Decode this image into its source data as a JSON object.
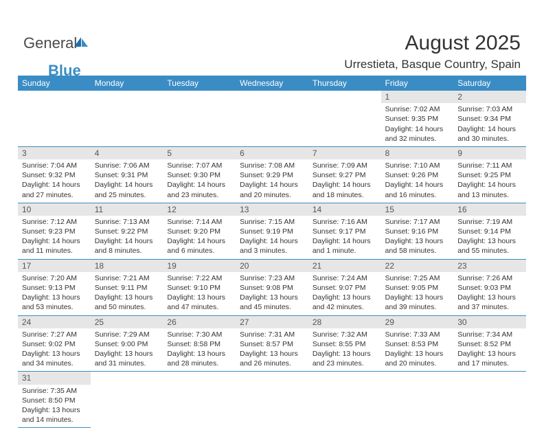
{
  "brand": {
    "general": "General",
    "blue": "Blue"
  },
  "title": "August 2025",
  "location": "Urrestieta, Basque Country, Spain",
  "colors": {
    "header_bg": "#3a8cc4",
    "header_text": "#ffffff",
    "brand_gray": "#4a4a4a",
    "brand_blue": "#3a8cc4",
    "daynum_bg": "#e6e6e6",
    "row_border": "#3a8cc4",
    "text": "#333333",
    "page_bg": "#ffffff"
  },
  "days": [
    "Sunday",
    "Monday",
    "Tuesday",
    "Wednesday",
    "Thursday",
    "Friday",
    "Saturday"
  ],
  "weeks": [
    [
      null,
      null,
      null,
      null,
      null,
      {
        "n": "1",
        "sr": "Sunrise: 7:02 AM",
        "ss": "Sunset: 9:35 PM",
        "d1": "Daylight: 14 hours",
        "d2": "and 32 minutes."
      },
      {
        "n": "2",
        "sr": "Sunrise: 7:03 AM",
        "ss": "Sunset: 9:34 PM",
        "d1": "Daylight: 14 hours",
        "d2": "and 30 minutes."
      }
    ],
    [
      {
        "n": "3",
        "sr": "Sunrise: 7:04 AM",
        "ss": "Sunset: 9:32 PM",
        "d1": "Daylight: 14 hours",
        "d2": "and 27 minutes."
      },
      {
        "n": "4",
        "sr": "Sunrise: 7:06 AM",
        "ss": "Sunset: 9:31 PM",
        "d1": "Daylight: 14 hours",
        "d2": "and 25 minutes."
      },
      {
        "n": "5",
        "sr": "Sunrise: 7:07 AM",
        "ss": "Sunset: 9:30 PM",
        "d1": "Daylight: 14 hours",
        "d2": "and 23 minutes."
      },
      {
        "n": "6",
        "sr": "Sunrise: 7:08 AM",
        "ss": "Sunset: 9:29 PM",
        "d1": "Daylight: 14 hours",
        "d2": "and 20 minutes."
      },
      {
        "n": "7",
        "sr": "Sunrise: 7:09 AM",
        "ss": "Sunset: 9:27 PM",
        "d1": "Daylight: 14 hours",
        "d2": "and 18 minutes."
      },
      {
        "n": "8",
        "sr": "Sunrise: 7:10 AM",
        "ss": "Sunset: 9:26 PM",
        "d1": "Daylight: 14 hours",
        "d2": "and 16 minutes."
      },
      {
        "n": "9",
        "sr": "Sunrise: 7:11 AM",
        "ss": "Sunset: 9:25 PM",
        "d1": "Daylight: 14 hours",
        "d2": "and 13 minutes."
      }
    ],
    [
      {
        "n": "10",
        "sr": "Sunrise: 7:12 AM",
        "ss": "Sunset: 9:23 PM",
        "d1": "Daylight: 14 hours",
        "d2": "and 11 minutes."
      },
      {
        "n": "11",
        "sr": "Sunrise: 7:13 AM",
        "ss": "Sunset: 9:22 PM",
        "d1": "Daylight: 14 hours",
        "d2": "and 8 minutes."
      },
      {
        "n": "12",
        "sr": "Sunrise: 7:14 AM",
        "ss": "Sunset: 9:20 PM",
        "d1": "Daylight: 14 hours",
        "d2": "and 6 minutes."
      },
      {
        "n": "13",
        "sr": "Sunrise: 7:15 AM",
        "ss": "Sunset: 9:19 PM",
        "d1": "Daylight: 14 hours",
        "d2": "and 3 minutes."
      },
      {
        "n": "14",
        "sr": "Sunrise: 7:16 AM",
        "ss": "Sunset: 9:17 PM",
        "d1": "Daylight: 14 hours",
        "d2": "and 1 minute."
      },
      {
        "n": "15",
        "sr": "Sunrise: 7:17 AM",
        "ss": "Sunset: 9:16 PM",
        "d1": "Daylight: 13 hours",
        "d2": "and 58 minutes."
      },
      {
        "n": "16",
        "sr": "Sunrise: 7:19 AM",
        "ss": "Sunset: 9:14 PM",
        "d1": "Daylight: 13 hours",
        "d2": "and 55 minutes."
      }
    ],
    [
      {
        "n": "17",
        "sr": "Sunrise: 7:20 AM",
        "ss": "Sunset: 9:13 PM",
        "d1": "Daylight: 13 hours",
        "d2": "and 53 minutes."
      },
      {
        "n": "18",
        "sr": "Sunrise: 7:21 AM",
        "ss": "Sunset: 9:11 PM",
        "d1": "Daylight: 13 hours",
        "d2": "and 50 minutes."
      },
      {
        "n": "19",
        "sr": "Sunrise: 7:22 AM",
        "ss": "Sunset: 9:10 PM",
        "d1": "Daylight: 13 hours",
        "d2": "and 47 minutes."
      },
      {
        "n": "20",
        "sr": "Sunrise: 7:23 AM",
        "ss": "Sunset: 9:08 PM",
        "d1": "Daylight: 13 hours",
        "d2": "and 45 minutes."
      },
      {
        "n": "21",
        "sr": "Sunrise: 7:24 AM",
        "ss": "Sunset: 9:07 PM",
        "d1": "Daylight: 13 hours",
        "d2": "and 42 minutes."
      },
      {
        "n": "22",
        "sr": "Sunrise: 7:25 AM",
        "ss": "Sunset: 9:05 PM",
        "d1": "Daylight: 13 hours",
        "d2": "and 39 minutes."
      },
      {
        "n": "23",
        "sr": "Sunrise: 7:26 AM",
        "ss": "Sunset: 9:03 PM",
        "d1": "Daylight: 13 hours",
        "d2": "and 37 minutes."
      }
    ],
    [
      {
        "n": "24",
        "sr": "Sunrise: 7:27 AM",
        "ss": "Sunset: 9:02 PM",
        "d1": "Daylight: 13 hours",
        "d2": "and 34 minutes."
      },
      {
        "n": "25",
        "sr": "Sunrise: 7:29 AM",
        "ss": "Sunset: 9:00 PM",
        "d1": "Daylight: 13 hours",
        "d2": "and 31 minutes."
      },
      {
        "n": "26",
        "sr": "Sunrise: 7:30 AM",
        "ss": "Sunset: 8:58 PM",
        "d1": "Daylight: 13 hours",
        "d2": "and 28 minutes."
      },
      {
        "n": "27",
        "sr": "Sunrise: 7:31 AM",
        "ss": "Sunset: 8:57 PM",
        "d1": "Daylight: 13 hours",
        "d2": "and 26 minutes."
      },
      {
        "n": "28",
        "sr": "Sunrise: 7:32 AM",
        "ss": "Sunset: 8:55 PM",
        "d1": "Daylight: 13 hours",
        "d2": "and 23 minutes."
      },
      {
        "n": "29",
        "sr": "Sunrise: 7:33 AM",
        "ss": "Sunset: 8:53 PM",
        "d1": "Daylight: 13 hours",
        "d2": "and 20 minutes."
      },
      {
        "n": "30",
        "sr": "Sunrise: 7:34 AM",
        "ss": "Sunset: 8:52 PM",
        "d1": "Daylight: 13 hours",
        "d2": "and 17 minutes."
      }
    ],
    [
      {
        "n": "31",
        "sr": "Sunrise: 7:35 AM",
        "ss": "Sunset: 8:50 PM",
        "d1": "Daylight: 13 hours",
        "d2": "and 14 minutes."
      },
      null,
      null,
      null,
      null,
      null,
      null
    ]
  ]
}
